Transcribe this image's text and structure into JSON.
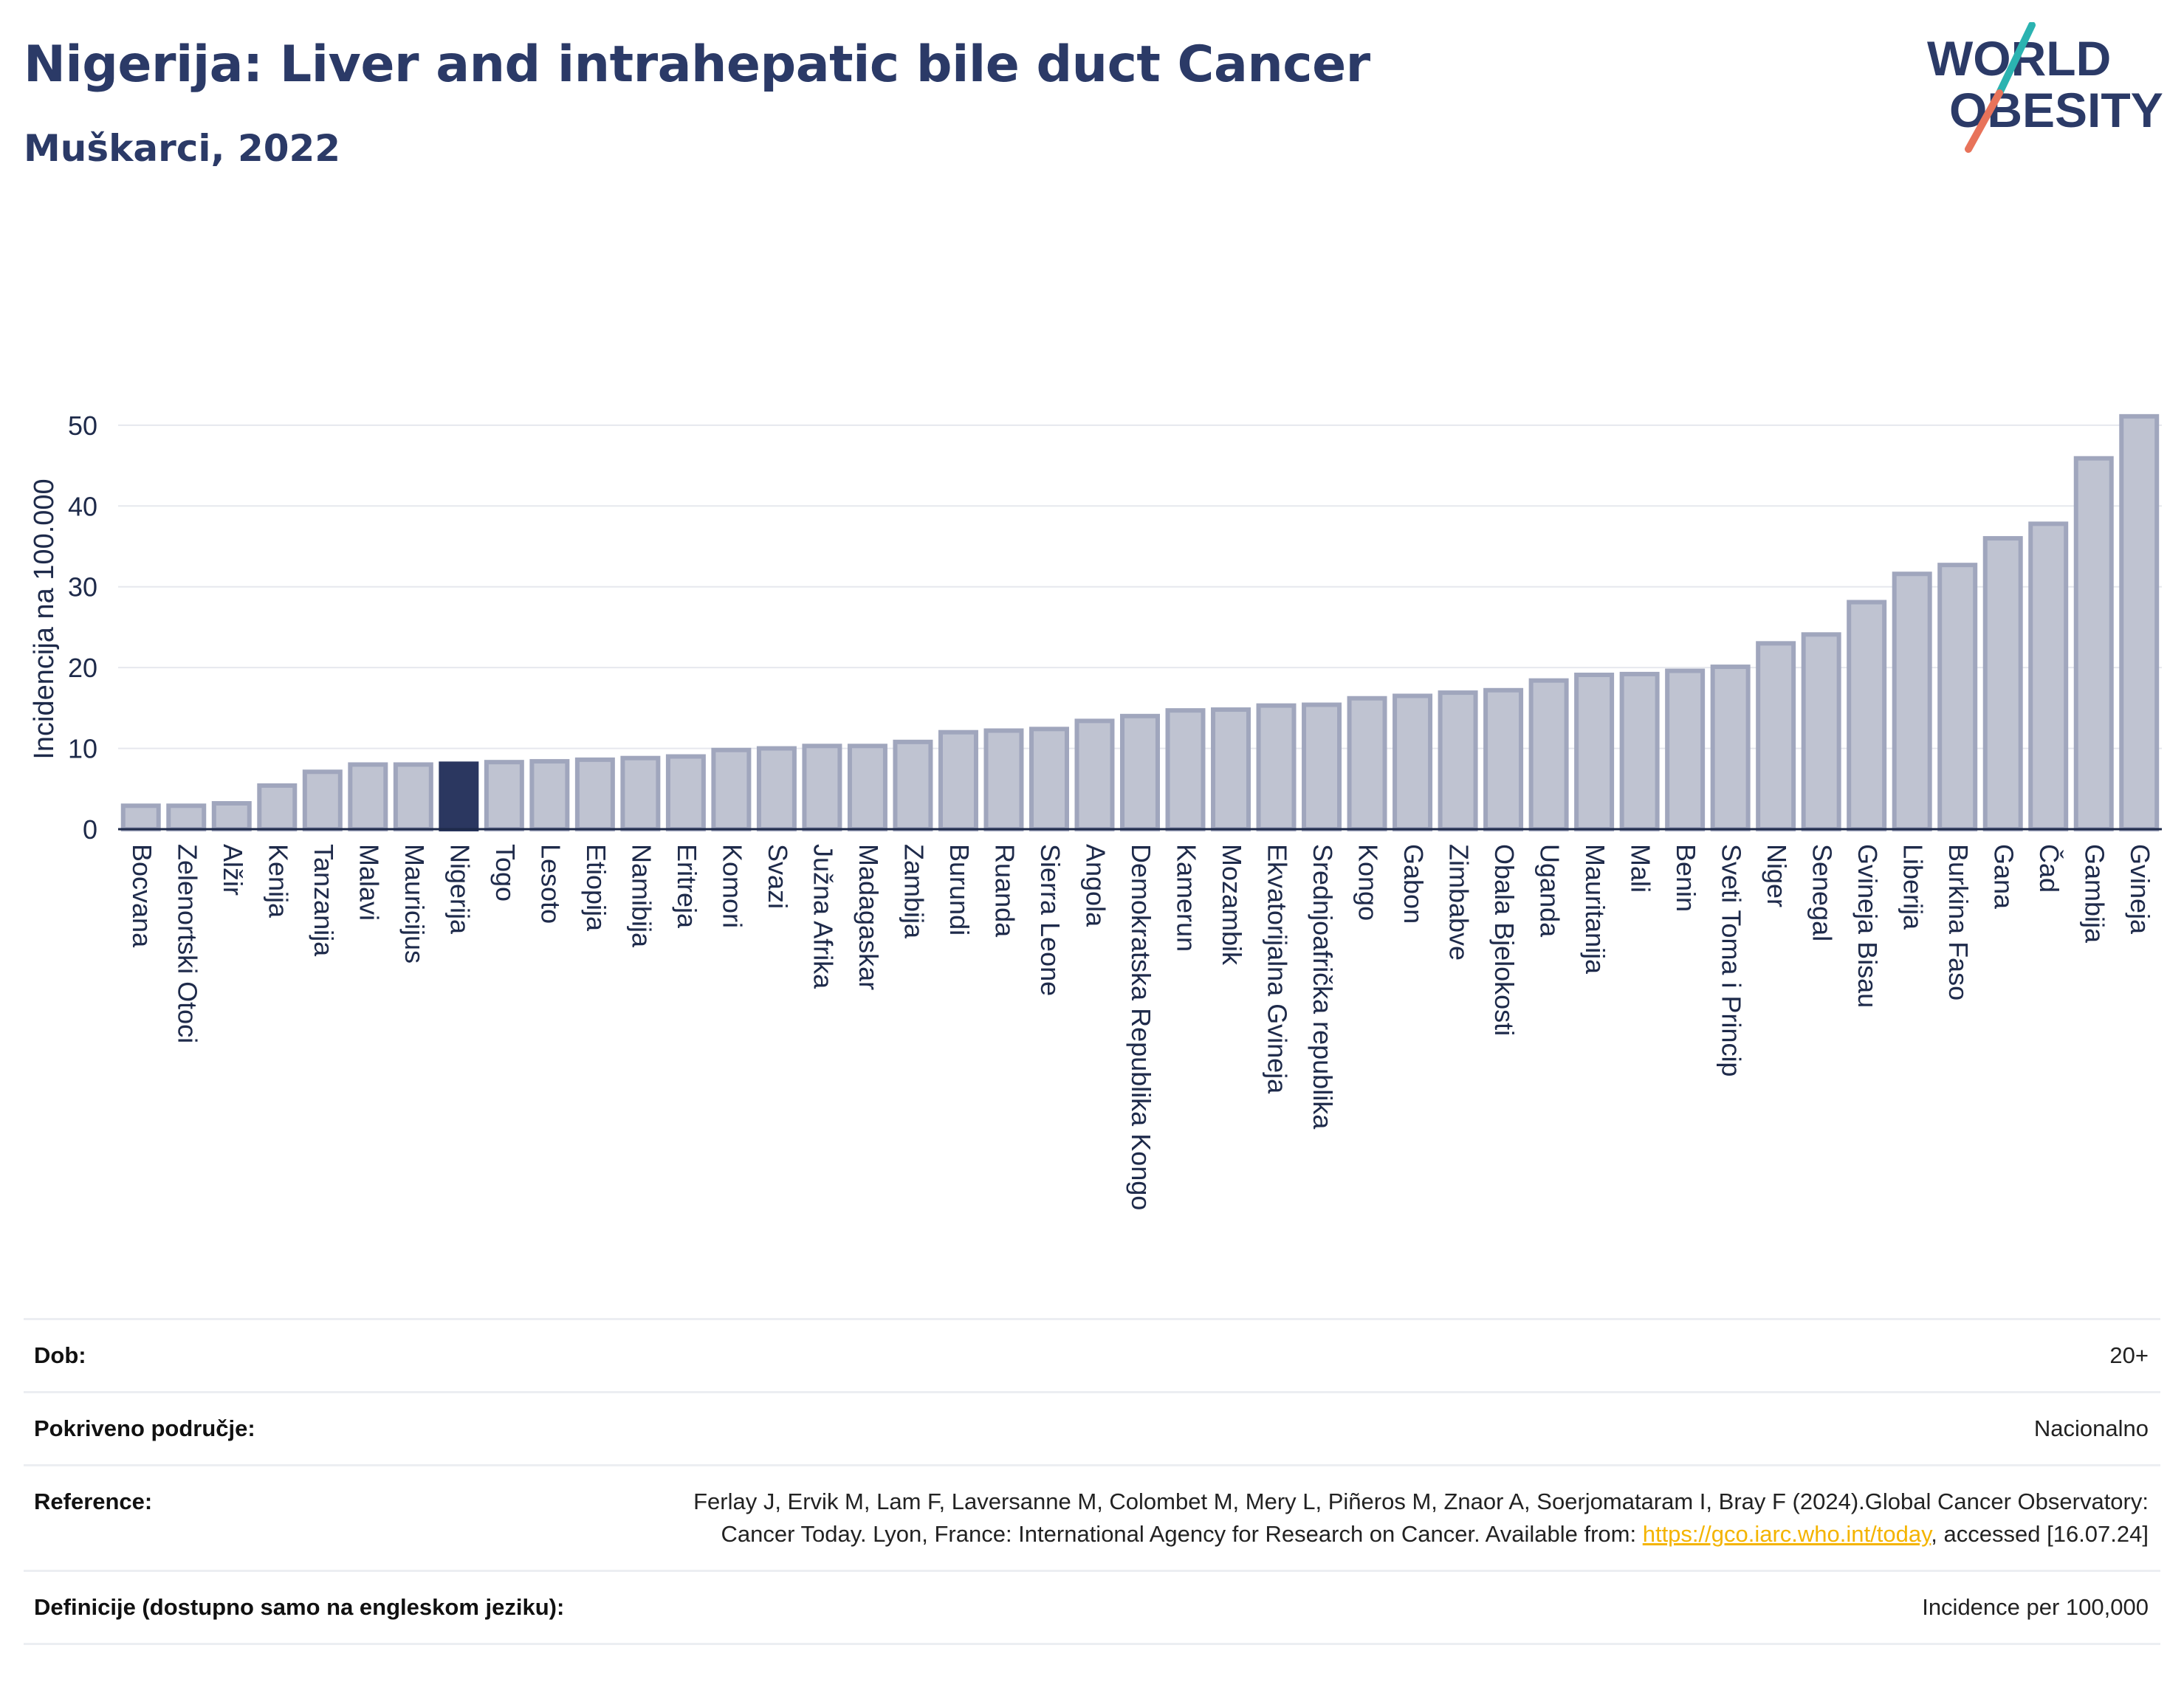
{
  "header": {
    "title": "Nigerija: Liver and intrahepatic bile duct Cancer",
    "subtitle": "Muškarci, 2022"
  },
  "logo": {
    "line1": "WORLD",
    "line2": "OBESITY",
    "colors": {
      "text": "#2b3a67",
      "slash_top": "#2bb3b1",
      "slash_bottom": "#e8735a"
    }
  },
  "chart_data": {
    "type": "bar",
    "ylabel": "Incidencija na 100.000",
    "xlabel": "",
    "ylim": [
      0,
      52
    ],
    "yticks": [
      0,
      10,
      20,
      30,
      40,
      50
    ],
    "grid": true,
    "highlight": "Nigerija",
    "colors": {
      "bar": "#bfc3d1",
      "bar_edge": "#a0a6bd",
      "highlight": "#2b3760",
      "grid": "#e6e8ee",
      "axis": "#1e2a4a"
    },
    "categories": [
      "Bocvana",
      "Zelenortski Otoci",
      "Alžir",
      "Kenija",
      "Tanzanija",
      "Malavi",
      "Mauricijus",
      "Nigerija",
      "Togo",
      "Lesoto",
      "Etiopija",
      "Namibija",
      "Eritreja",
      "Komori",
      "Svazi",
      "Južna Afrika",
      "Madagaskar",
      "Zambija",
      "Burundi",
      "Ruanda",
      "Sierra Leone",
      "Angola",
      "Demokratska Republika Kongo",
      "Kamerun",
      "Mozambik",
      "Ekvatorijalna Gvineja",
      "Srednjoafrička republika",
      "Kongo",
      "Gabon",
      "Zimbabve",
      "Obala Bjelokosti",
      "Uganda",
      "Mauritanija",
      "Mali",
      "Benin",
      "Sveti Toma i Princip",
      "Niger",
      "Senegal",
      "Gvineja Bisau",
      "Liberija",
      "Burkina Faso",
      "Gana",
      "Čad",
      "Gambija",
      "Gvineja"
    ],
    "values": [
      2.9,
      2.9,
      3.2,
      5.4,
      7.1,
      8.0,
      8.0,
      8.1,
      8.3,
      8.4,
      8.6,
      8.8,
      9.0,
      9.8,
      10.0,
      10.3,
      10.3,
      10.8,
      12.0,
      12.2,
      12.4,
      13.4,
      14.0,
      14.7,
      14.8,
      15.3,
      15.4,
      16.2,
      16.5,
      16.9,
      17.2,
      18.4,
      19.1,
      19.2,
      19.6,
      20.1,
      23.0,
      24.1,
      28.1,
      31.6,
      32.7,
      36.0,
      37.8,
      45.9,
      51.1
    ]
  },
  "meta": {
    "age_label": "Dob:",
    "age_value": "20+",
    "coverage_label": "Pokriveno područje:",
    "coverage_value": "Nacionalno",
    "reference_label": "Reference:",
    "reference_text_1": "Ferlay J, Ervik M, Lam F, Laversanne M, Colombet M, Mery L, Piñeros M, Znaor A, Soerjomataram I, Bray F (2024).Global Cancer Observatory: Cancer Today. Lyon, France: International Agency for Research on Cancer. Available from: ",
    "reference_link": "https://gco.iarc.who.int/today",
    "reference_text_2": ", accessed [16.07.24]",
    "definitions_label": "Definicije (dostupno samo na engleskom jeziku):",
    "definitions_value": "Incidence per 100,000"
  }
}
